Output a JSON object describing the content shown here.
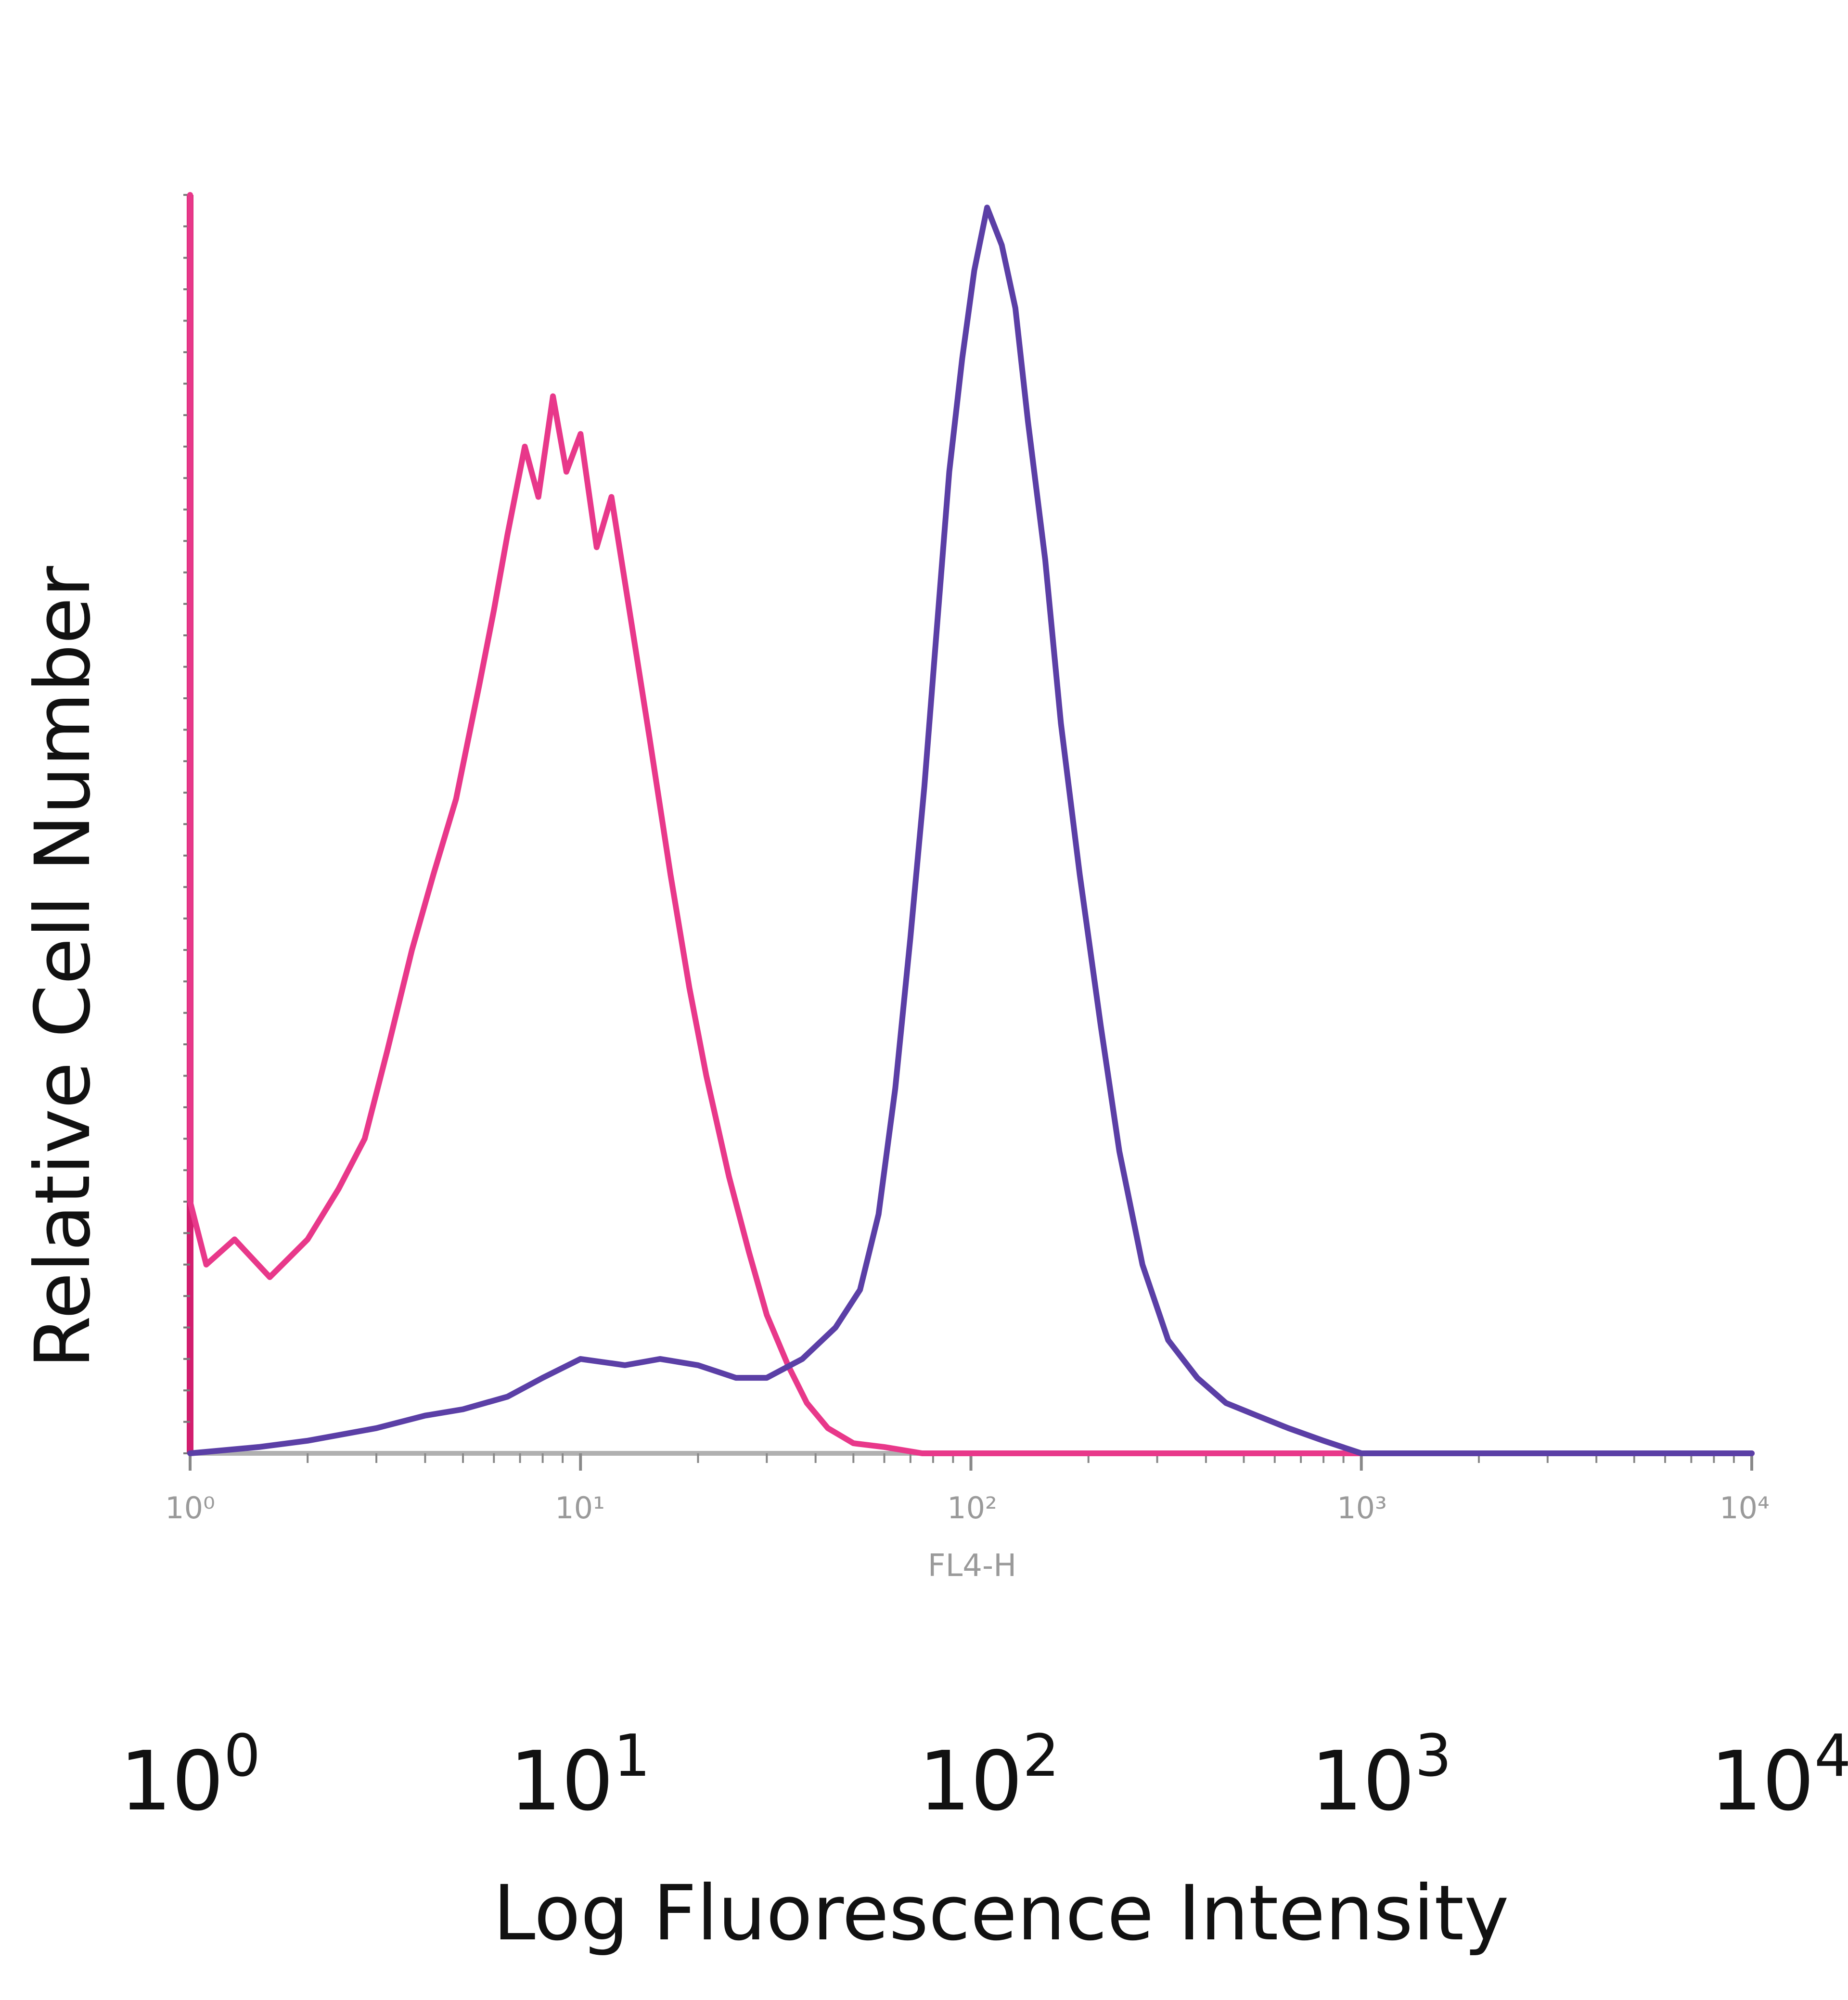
{
  "chart_data": {
    "type": "line",
    "title": "",
    "xlabel": "Log Fluorescence Intensity",
    "ylabel": "Relative Cell Number",
    "x_scale": "log",
    "xlim": [
      1,
      10000
    ],
    "ylim": [
      0,
      100
    ],
    "grid": false,
    "legend": "none",
    "channel_label": "FL4-H",
    "inner_tick_labels": [
      "10⁰",
      "10¹",
      "10²",
      "10³",
      "10⁴"
    ],
    "outer_tick_labels": [
      {
        "base": "10",
        "exp": "0"
      },
      {
        "base": "10",
        "exp": "1"
      },
      {
        "base": "10",
        "exp": "2"
      },
      {
        "base": "10",
        "exp": "3"
      },
      {
        "base": "10",
        "exp": "4"
      }
    ],
    "series": [
      {
        "color": "#e8388a",
        "points": [
          [
            1.0,
            100
          ],
          [
            1.0,
            20
          ],
          [
            1.1,
            15
          ],
          [
            1.3,
            17
          ],
          [
            1.6,
            14
          ],
          [
            2.0,
            17
          ],
          [
            2.4,
            21
          ],
          [
            2.8,
            25
          ],
          [
            3.2,
            32
          ],
          [
            3.7,
            40
          ],
          [
            4.2,
            46
          ],
          [
            4.8,
            52
          ],
          [
            5.5,
            61
          ],
          [
            6.0,
            67
          ],
          [
            6.5,
            73
          ],
          [
            7.2,
            80
          ],
          [
            7.8,
            76
          ],
          [
            8.5,
            84
          ],
          [
            9.2,
            78
          ],
          [
            10.0,
            81
          ],
          [
            11.0,
            72
          ],
          [
            12.0,
            76
          ],
          [
            13.5,
            66
          ],
          [
            15.0,
            57
          ],
          [
            17.0,
            46
          ],
          [
            19.0,
            37
          ],
          [
            21.0,
            30
          ],
          [
            24.0,
            22
          ],
          [
            27.0,
            16
          ],
          [
            30.0,
            11
          ],
          [
            34.0,
            7
          ],
          [
            38.0,
            4
          ],
          [
            43.0,
            2
          ],
          [
            50.0,
            0.8
          ],
          [
            60.0,
            0.5
          ],
          [
            75.0,
            0
          ],
          [
            100.0,
            0
          ],
          [
            1000.0,
            0
          ],
          [
            10000.0,
            0
          ]
        ]
      },
      {
        "color": "#5b3fa6",
        "points": [
          [
            1.0,
            0
          ],
          [
            1.5,
            0.5
          ],
          [
            2.0,
            1
          ],
          [
            3.0,
            2
          ],
          [
            4.0,
            3
          ],
          [
            5.0,
            3.5
          ],
          [
            6.5,
            4.5
          ],
          [
            8.0,
            6
          ],
          [
            10.0,
            7.5
          ],
          [
            13.0,
            7
          ],
          [
            16.0,
            7.5
          ],
          [
            20.0,
            7
          ],
          [
            25.0,
            6
          ],
          [
            30.0,
            6
          ],
          [
            37.0,
            7.5
          ],
          [
            45.0,
            10
          ],
          [
            52.0,
            13
          ],
          [
            58.0,
            19
          ],
          [
            64.0,
            29
          ],
          [
            70.0,
            41
          ],
          [
            76.0,
            53
          ],
          [
            82.0,
            66
          ],
          [
            88.0,
            78
          ],
          [
            95.0,
            87
          ],
          [
            102.0,
            94
          ],
          [
            110.0,
            99
          ],
          [
            120.0,
            96
          ],
          [
            130.0,
            91
          ],
          [
            140.0,
            82
          ],
          [
            155.0,
            71
          ],
          [
            170.0,
            58
          ],
          [
            190.0,
            46
          ],
          [
            215.0,
            34
          ],
          [
            240.0,
            24
          ],
          [
            275.0,
            15
          ],
          [
            320.0,
            9
          ],
          [
            380.0,
            6
          ],
          [
            450.0,
            4
          ],
          [
            540.0,
            3
          ],
          [
            650.0,
            2
          ],
          [
            800.0,
            1
          ],
          [
            1000.0,
            0
          ],
          [
            10000.0,
            0
          ]
        ]
      }
    ]
  }
}
